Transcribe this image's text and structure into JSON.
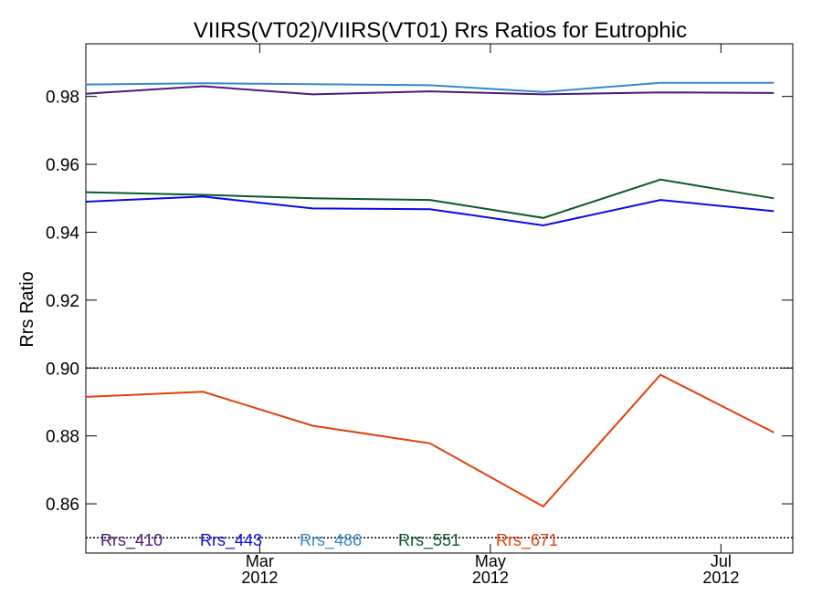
{
  "chart_data": {
    "type": "line",
    "title": "VIIRS(VT02)/VIIRS(VT01)  Rrs Ratios for Eutrophic",
    "ylabel": "Rrs Ratio",
    "xlabel": "",
    "x": [
      "2012-01-15",
      "2012-02-15",
      "2012-03-15",
      "2012-04-15",
      "2012-05-15",
      "2012-06-15",
      "2012-07-15"
    ],
    "xlim": [
      "2012-01-15",
      "2012-07-20"
    ],
    "ylim": [
      0.8455,
      0.9955
    ],
    "x_ticks": [
      {
        "date": "2012-03-01",
        "month": "Mar",
        "year": "2012"
      },
      {
        "date": "2012-05-01",
        "month": "May",
        "year": "2012"
      },
      {
        "date": "2012-07-01",
        "month": "Jul",
        "year": "2012"
      }
    ],
    "y_ticks": [
      0.86,
      0.88,
      0.9,
      0.92,
      0.94,
      0.96,
      0.98
    ],
    "y_tick_labels": [
      "0.86",
      "0.88",
      "0.90",
      "0.92",
      "0.94",
      "0.96",
      "0.98"
    ],
    "reference_lines": [
      0.9,
      0.85
    ],
    "grid": false,
    "legend_position": "bottom, inside plot",
    "series": [
      {
        "name": "Rrs_410",
        "color": "#4b1a7a",
        "values": [
          0.9808,
          0.983,
          0.9806,
          0.9815,
          0.9806,
          0.9812,
          0.981
        ]
      },
      {
        "name": "Rrs_443",
        "color": "#0a0ae6",
        "values": [
          0.949,
          0.9505,
          0.947,
          0.9468,
          0.942,
          0.9495,
          0.9462
        ]
      },
      {
        "name": "Rrs_486",
        "color": "#3a88c8",
        "values": [
          0.9835,
          0.9839,
          0.9836,
          0.9833,
          0.9813,
          0.984,
          0.984
        ]
      },
      {
        "name": "Rrs_551",
        "color": "#0a5a2a",
        "values": [
          0.9518,
          0.951,
          0.95,
          0.9495,
          0.9442,
          0.9555,
          0.95
        ]
      },
      {
        "name": "Rrs_671",
        "color": "#e0400a",
        "values": [
          0.8915,
          0.893,
          0.883,
          0.8778,
          0.8592,
          0.898,
          0.881
        ]
      }
    ]
  }
}
